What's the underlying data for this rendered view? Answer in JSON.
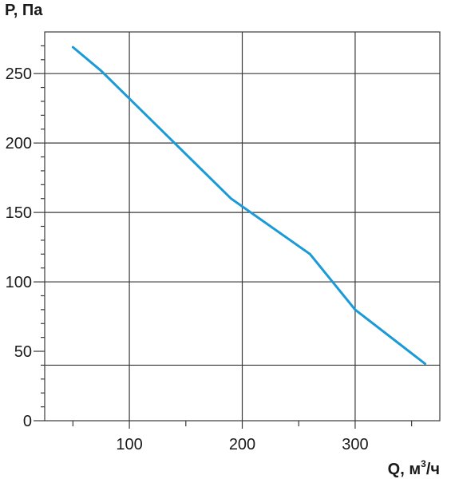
{
  "chart_data": {
    "type": "line",
    "title": "",
    "ylabel": "P, Па",
    "xlabel": {
      "prefix": "Q, м",
      "superscript": "3",
      "suffix": "/ч"
    },
    "xlim": [
      25,
      375
    ],
    "ylim": [
      0,
      280
    ],
    "x_ticks": [
      100,
      200,
      300
    ],
    "y_ticks": [
      0,
      50,
      100,
      150,
      200,
      250
    ],
    "x_gridlines": [
      100,
      200,
      300
    ],
    "y_gridlines": [
      40,
      100,
      150,
      200,
      250
    ],
    "grid": true,
    "line_color": "#1a9ad6",
    "series": [
      {
        "x": [
          50,
          75,
          190,
          260,
          300,
          362
        ],
        "y": [
          269,
          252,
          160,
          120,
          80,
          41
        ]
      }
    ]
  }
}
